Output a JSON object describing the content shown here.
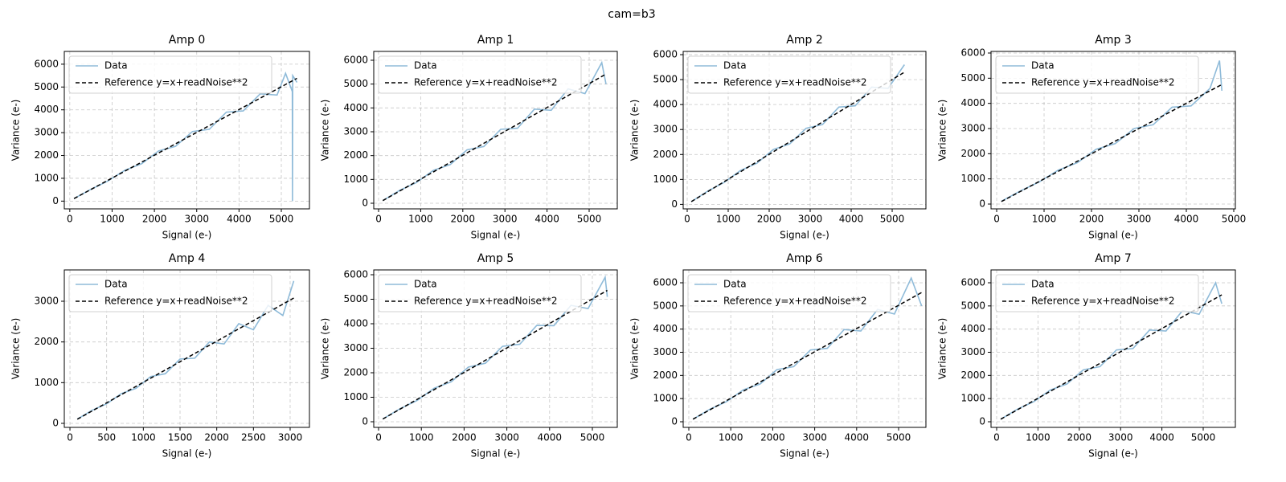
{
  "suptitle": "cam=b3",
  "chart_data": [
    {
      "type": "line",
      "title": "Amp 0",
      "xlabel": "Signal (e-)",
      "ylabel": "Variance (e-)",
      "grid": true,
      "legend": "upper left",
      "xlim": [
        -130,
        5665
      ],
      "ylim": [
        -340,
        6560
      ],
      "xticks": [
        0,
        1000,
        2000,
        3000,
        4000,
        5000
      ],
      "yticks": [
        0,
        1000,
        2000,
        3000,
        4000,
        5000,
        6000
      ],
      "series": [
        {
          "name": "Data",
          "color": "#8fbbd9",
          "x": [
            100,
            500,
            900,
            1300,
            1700,
            2100,
            2500,
            2900,
            3300,
            3700,
            4100,
            4500,
            4900,
            5100,
            5260,
            5265,
            5270,
            5370
          ],
          "values": [
            110,
            520,
            880,
            1350,
            1640,
            2200,
            2400,
            3050,
            3150,
            3900,
            3950,
            4700,
            4650,
            5600,
            4800,
            0,
            5500,
            5200
          ]
        },
        {
          "name": "Reference y=x+readNoise**2",
          "color": "#000000",
          "dashed": true,
          "x": [
            100,
            5370
          ],
          "values": [
            110,
            5380
          ]
        }
      ]
    },
    {
      "type": "line",
      "title": "Amp 1",
      "xlabel": "Signal (e-)",
      "ylabel": "Variance (e-)",
      "grid": true,
      "legend": "upper left",
      "xlim": [
        -115,
        5668
      ],
      "ylim": [
        -236,
        6371
      ],
      "xticks": [
        0,
        1000,
        2000,
        3000,
        4000,
        5000
      ],
      "yticks": [
        0,
        1000,
        2000,
        3000,
        4000,
        5000,
        6000
      ],
      "series": [
        {
          "name": "Data",
          "color": "#8fbbd9",
          "x": [
            100,
            500,
            900,
            1300,
            1700,
            2100,
            2500,
            2900,
            3300,
            3700,
            4100,
            4500,
            4900,
            5300,
            5400
          ],
          "values": [
            110,
            540,
            870,
            1380,
            1620,
            2240,
            2380,
            3100,
            3150,
            3950,
            3900,
            4800,
            4600,
            5900,
            5000
          ]
        },
        {
          "name": "Reference y=x+readNoise**2",
          "color": "#000000",
          "dashed": true,
          "x": [
            100,
            5400
          ],
          "values": [
            110,
            5420
          ]
        }
      ]
    },
    {
      "type": "line",
      "title": "Amp 2",
      "xlabel": "Signal (e-)",
      "ylabel": "Variance (e-)",
      "grid": true,
      "legend": "upper left",
      "xlim": [
        -98,
        5823
      ],
      "ylim": [
        -180,
        6130
      ],
      "xticks": [
        0,
        1000,
        2000,
        3000,
        4000,
        5000
      ],
      "yticks": [
        0,
        1000,
        2000,
        3000,
        4000,
        5000,
        6000
      ],
      "series": [
        {
          "name": "Data",
          "color": "#8fbbd9",
          "x": [
            100,
            500,
            900,
            1300,
            1700,
            2100,
            2500,
            2900,
            3300,
            3700,
            4100,
            4500,
            4900,
            5300
          ],
          "values": [
            110,
            530,
            880,
            1360,
            1650,
            2200,
            2420,
            3050,
            3200,
            3900,
            3950,
            4700,
            4650,
            5600
          ]
        },
        {
          "name": "Reference y=x+readNoise**2",
          "color": "#000000",
          "dashed": true,
          "x": [
            100,
            5300
          ],
          "values": [
            110,
            5300
          ]
        }
      ]
    },
    {
      "type": "line",
      "title": "Amp 3",
      "xlabel": "Signal (e-)",
      "ylabel": "Variance (e-)",
      "grid": true,
      "legend": "upper left",
      "xlim": [
        -119,
        5034
      ],
      "ylim": [
        -191,
        6064
      ],
      "xticks": [
        0,
        1000,
        2000,
        3000,
        4000,
        5000
      ],
      "yticks": [
        0,
        1000,
        2000,
        3000,
        4000,
        5000,
        6000
      ],
      "series": [
        {
          "name": "Data",
          "color": "#8fbbd9",
          "x": [
            100,
            500,
            900,
            1300,
            1700,
            2100,
            2500,
            2900,
            3300,
            3700,
            4100,
            4500,
            4700,
            4750
          ],
          "values": [
            110,
            520,
            880,
            1350,
            1640,
            2180,
            2400,
            3000,
            3150,
            3850,
            3900,
            4600,
            5700,
            4500
          ]
        },
        {
          "name": "Reference y=x+readNoise**2",
          "color": "#000000",
          "dashed": true,
          "x": [
            100,
            4750
          ],
          "values": [
            100,
            4750
          ]
        }
      ]
    },
    {
      "type": "line",
      "title": "Amp 4",
      "xlabel": "Signal (e-)",
      "ylabel": "Variance (e-)",
      "grid": true,
      "legend": "upper left",
      "xlim": [
        -77,
        3263
      ],
      "ylim": [
        -99,
        3770
      ],
      "xticks": [
        0,
        500,
        1000,
        1500,
        2000,
        2500,
        3000
      ],
      "yticks": [
        0,
        1000,
        2000,
        3000
      ],
      "series": [
        {
          "name": "Data",
          "color": "#8fbbd9",
          "x": [
            100,
            300,
            500,
            700,
            900,
            1100,
            1300,
            1500,
            1700,
            1900,
            2100,
            2300,
            2500,
            2700,
            2900,
            3050
          ],
          "values": [
            105,
            320,
            480,
            730,
            860,
            1150,
            1220,
            1580,
            1600,
            2000,
            1950,
            2450,
            2300,
            2900,
            2650,
            3500
          ]
        },
        {
          "name": "Reference y=x+readNoise**2",
          "color": "#000000",
          "dashed": true,
          "x": [
            100,
            3050
          ],
          "values": [
            100,
            3080
          ]
        }
      ]
    },
    {
      "type": "line",
      "title": "Amp 5",
      "xlabel": "Signal (e-)",
      "ylabel": "Variance (e-)",
      "grid": true,
      "legend": "upper left",
      "xlim": [
        -113,
        5583
      ],
      "ylim": [
        -230,
        6197
      ],
      "xticks": [
        0,
        1000,
        2000,
        3000,
        4000,
        5000
      ],
      "yticks": [
        0,
        1000,
        2000,
        3000,
        4000,
        5000,
        6000
      ],
      "series": [
        {
          "name": "Data",
          "color": "#8fbbd9",
          "x": [
            100,
            500,
            900,
            1300,
            1700,
            2100,
            2500,
            2900,
            3300,
            3700,
            4100,
            4500,
            4900,
            5300,
            5350
          ],
          "values": [
            110,
            530,
            870,
            1370,
            1630,
            2230,
            2390,
            3080,
            3160,
            3930,
            3920,
            4750,
            4620,
            5900,
            5100
          ]
        },
        {
          "name": "Reference y=x+readNoise**2",
          "color": "#000000",
          "dashed": true,
          "x": [
            100,
            5350
          ],
          "values": [
            110,
            5360
          ]
        }
      ]
    },
    {
      "type": "line",
      "title": "Amp 6",
      "xlabel": "Signal (e-)",
      "ylabel": "Variance (e-)",
      "grid": true,
      "legend": "upper left",
      "xlim": [
        -134,
        5651
      ],
      "ylim": [
        -243,
        6555
      ],
      "xticks": [
        0,
        1000,
        2000,
        3000,
        4000,
        5000
      ],
      "yticks": [
        0,
        1000,
        2000,
        3000,
        4000,
        5000,
        6000
      ],
      "series": [
        {
          "name": "Data",
          "color": "#8fbbd9",
          "x": [
            100,
            500,
            900,
            1300,
            1700,
            2100,
            2500,
            2900,
            3300,
            3700,
            4100,
            4500,
            4900,
            5300,
            5550
          ],
          "values": [
            110,
            540,
            870,
            1380,
            1630,
            2250,
            2380,
            3100,
            3170,
            3980,
            3920,
            4850,
            4650,
            6200,
            5000
          ]
        },
        {
          "name": "Reference y=x+readNoise**2",
          "color": "#000000",
          "dashed": true,
          "x": [
            100,
            5550
          ],
          "values": [
            110,
            5580
          ]
        }
      ]
    },
    {
      "type": "line",
      "title": "Amp 7",
      "xlabel": "Signal (e-)",
      "ylabel": "Variance (e-)",
      "grid": true,
      "legend": "upper left",
      "xlim": [
        -136,
        5778
      ],
      "ylim": [
        -243,
        6555
      ],
      "xticks": [
        0,
        1000,
        2000,
        3000,
        4000,
        5000
      ],
      "yticks": [
        0,
        1000,
        2000,
        3000,
        4000,
        5000,
        6000
      ],
      "series": [
        {
          "name": "Data",
          "color": "#8fbbd9",
          "x": [
            100,
            500,
            900,
            1300,
            1700,
            2100,
            2500,
            2900,
            3300,
            3700,
            4100,
            4500,
            4900,
            5300,
            5450
          ],
          "values": [
            110,
            540,
            870,
            1370,
            1630,
            2240,
            2380,
            3100,
            3160,
            3960,
            3920,
            4800,
            4640,
            6000,
            5100
          ]
        },
        {
          "name": "Reference y=x+readNoise**2",
          "color": "#000000",
          "dashed": true,
          "x": [
            100,
            5450
          ],
          "values": [
            110,
            5480
          ]
        }
      ]
    }
  ]
}
